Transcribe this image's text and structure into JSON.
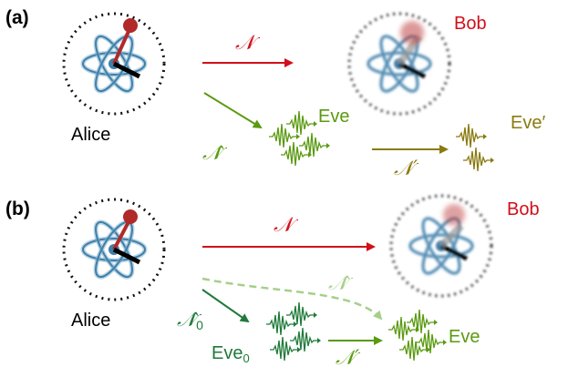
{
  "colors": {
    "alice_hand": "#b02a2a",
    "channel_red": "#d0101b",
    "eve_green": "#5a9a10",
    "eve_prime": "#8a7a10",
    "eve0_dark_green": "#1f7a3a",
    "dashed_light_green": "#a6cf8a",
    "atom_blue": "#3f7fa8"
  },
  "panel_a": {
    "label": "(a)",
    "alice": "Alice",
    "bob": "Bob",
    "eve": "Eve",
    "eve_prime": "Eve′",
    "channel": "𝒩",
    "complement": "𝒩̂",
    "channel_prime": "𝒩′"
  },
  "panel_b": {
    "label": "(b)",
    "alice": "Alice",
    "bob": "Bob",
    "eve": "Eve",
    "eve0": "Eve",
    "eve0_subscript": "0",
    "channel": "𝒩",
    "complement": "𝒩̂",
    "complement0": "𝒩̂",
    "complement0_subscript": "0",
    "channel_prime": "𝒩′"
  },
  "icons": [
    "clock-icon",
    "atom-icon",
    "clock-hand-icon",
    "wave-packet-icon"
  ]
}
